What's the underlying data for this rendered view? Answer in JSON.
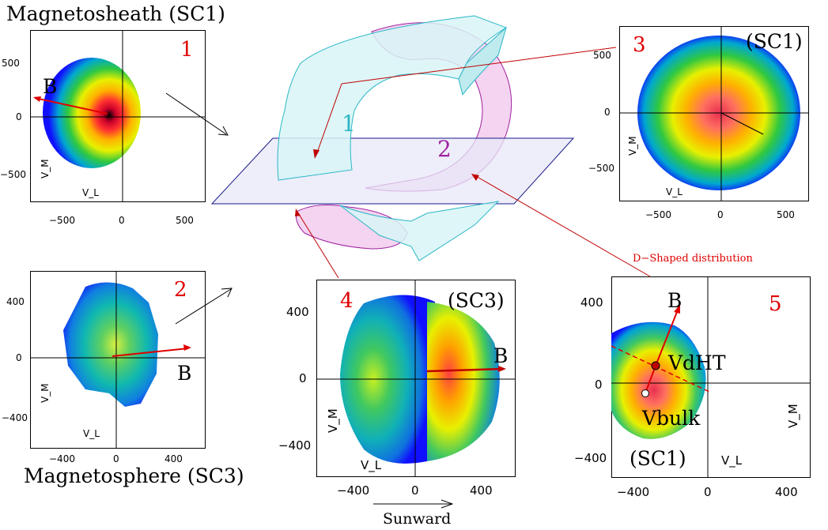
{
  "titles": {
    "top_left": "Magnetosheath (SC1)",
    "bottom_left": "Magnetosphere (SC3)"
  },
  "panels": [
    {
      "id": 1,
      "number": "1",
      "field_label": "B",
      "v_l": "V_L",
      "v_m": "V_M",
      "x_ticks": [
        "−500",
        "0",
        "500"
      ],
      "y_ticks": [
        "500",
        "0",
        "−500"
      ]
    },
    {
      "id": 2,
      "number": "2",
      "field_label": "B",
      "v_l": "V_L",
      "v_m": "V_M",
      "x_ticks": [
        "−400",
        "0",
        "400"
      ],
      "y_ticks": [
        "400",
        "0",
        "−400"
      ]
    },
    {
      "id": 3,
      "number": "3",
      "sc_label": "(SC1)",
      "v_l": "V_L",
      "v_m": "V_M",
      "x_ticks": [
        "−500",
        "0",
        "500"
      ],
      "y_ticks": [
        "500",
        "0",
        "−500"
      ]
    },
    {
      "id": 4,
      "number": "4",
      "sc_label": "(SC3)",
      "field_label": "B",
      "v_l": "V_L",
      "v_m": "V_M",
      "x_ticks": [
        "−400",
        "0",
        "400"
      ],
      "y_ticks": [
        "400",
        "0",
        "−400"
      ]
    },
    {
      "id": 5,
      "number": "5",
      "sc_label": "(SC1)",
      "field_label": "B",
      "v_l": "V_L",
      "v_m": "V_M",
      "x_ticks": [
        "−400",
        "0",
        "400"
      ],
      "y_ticks": [
        "400",
        "0",
        "−400"
      ],
      "vdht_label": "VdHT",
      "vbulk_label": "Vbulk"
    }
  ],
  "diagram": {
    "region_1": "1",
    "region_2": "2",
    "d_shaped_label": "D−Shaped distribution",
    "sunward_label": "Sunward"
  },
  "colors": {
    "accent_red": "#e00000",
    "region_1": "#2ab7c7",
    "region_2": "#a020a0",
    "plane": "#1a1a8c"
  }
}
